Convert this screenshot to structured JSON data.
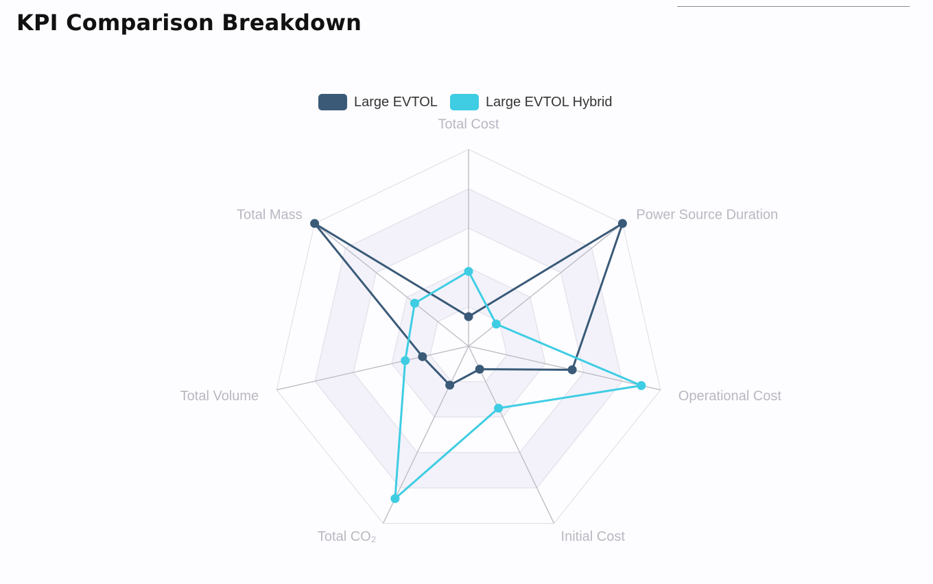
{
  "page": {
    "title": "KPI Comparison Breakdown"
  },
  "colors": {
    "series_1": "#3a5a78",
    "series_2": "#3ecde3",
    "grid_line": "#dcdce6",
    "axis_line": "#bdbdc6",
    "band_fill": "#f3f2fa",
    "label": "#b8b8c2"
  },
  "chart_data": {
    "type": "radar",
    "title": "KPI Comparison Breakdown",
    "axes": [
      "Total Cost",
      "Power Source Duration",
      "Operational Cost",
      "Initial Cost",
      "Total CO₂",
      "Total Volume",
      "Total Mass"
    ],
    "range": [
      0,
      1
    ],
    "split_levels": 5,
    "legend_position": "top-center",
    "series": [
      {
        "name": "Large EVTOL",
        "values": [
          0.15,
          1.0,
          0.54,
          0.13,
          0.22,
          0.24,
          1.0
        ]
      },
      {
        "name": "Large EVTOL Hybrid",
        "values": [
          0.38,
          0.18,
          0.9,
          0.35,
          0.86,
          0.33,
          0.35
        ]
      }
    ]
  }
}
